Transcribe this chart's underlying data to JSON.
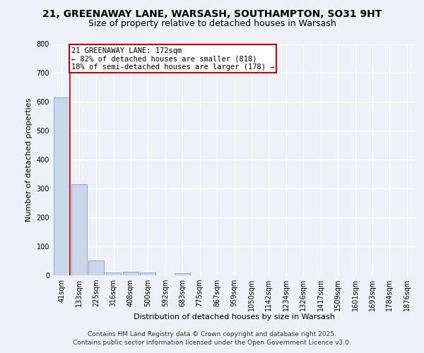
{
  "title_line1": "21, GREENAWAY LANE, WARSASH, SOUTHAMPTON, SO31 9HT",
  "title_line2": "Size of property relative to detached houses in Warsash",
  "xlabel": "Distribution of detached houses by size in Warsash",
  "ylabel": "Number of detached properties",
  "categories": [
    "41sqm",
    "133sqm",
    "225sqm",
    "316sqm",
    "408sqm",
    "500sqm",
    "592sqm",
    "683sqm",
    "775sqm",
    "867sqm",
    "959sqm",
    "1050sqm",
    "1142sqm",
    "1234sqm",
    "1326sqm",
    "1417sqm",
    "1509sqm",
    "1601sqm",
    "1693sqm",
    "1784sqm",
    "1876sqm"
  ],
  "values": [
    616,
    316,
    52,
    10,
    12,
    10,
    0,
    8,
    0,
    0,
    0,
    0,
    0,
    0,
    0,
    0,
    0,
    0,
    0,
    0,
    0
  ],
  "bar_color": "#c8d8ea",
  "bar_edge_color": "#88aacc",
  "red_line_x": 0.5,
  "annotation_text": "21 GREENAWAY LANE: 172sqm\n← 82% of detached houses are smaller (818)\n18% of semi-detached houses are larger (178) →",
  "annotation_box_facecolor": "#ffffff",
  "annotation_box_edgecolor": "#cc0000",
  "ylim": [
    0,
    800
  ],
  "yticks": [
    0,
    100,
    200,
    300,
    400,
    500,
    600,
    700,
    800
  ],
  "footer_line1": "Contains HM Land Registry data © Crown copyright and database right 2025.",
  "footer_line2": "Contains public sector information licensed under the Open Government Licence v3.0.",
  "bg_color": "#eef2f8",
  "plot_bg_color": "#eef2f8",
  "grid_color": "#ffffff",
  "title1_fontsize": 10,
  "title2_fontsize": 9,
  "axis_label_fontsize": 8,
  "tick_fontsize": 7,
  "footer_fontsize": 6.5,
  "annotation_fontsize": 7.5
}
